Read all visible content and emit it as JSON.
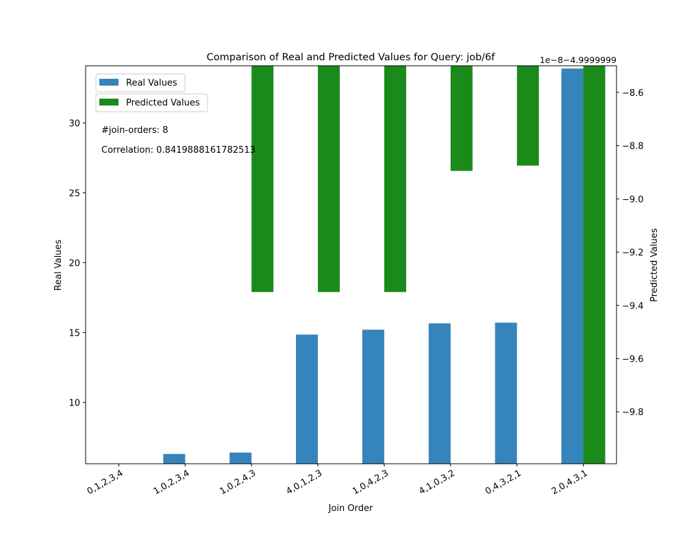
{
  "chart_data": {
    "type": "bar",
    "title": "Comparison of Real and Predicted Values for Query: job/6f",
    "xlabel": "Join Order",
    "ylabel_left": "Real Values",
    "ylabel_right": "Predicted Values",
    "right_offset_label": "1e−8−4.9999999",
    "categories": [
      "0,1,2,3,4",
      "1,0,2,3,4",
      "1,0,2,4,3",
      "4,0,1,2,3",
      "1,0,4,2,3",
      "4,1,0,3,2",
      "0,4,3,2,1",
      "2,0,4,3,1"
    ],
    "series": [
      {
        "name": "Real Values",
        "axis": "left",
        "color": "#3584bb",
        "values": [
          5.6,
          6.3,
          6.4,
          14.85,
          15.2,
          15.65,
          15.7,
          33.9
        ]
      },
      {
        "name": "Predicted Values",
        "axis": "right",
        "color": "#1a8a1a",
        "values": [
          -8.5,
          -8.5,
          -9.35,
          -9.35,
          -9.35,
          -8.895,
          -8.875,
          -10.0
        ]
      }
    ],
    "ylim_left": [
      5.6,
      34.1
    ],
    "yticks_left": [
      "10",
      "15",
      "20",
      "25",
      "30"
    ],
    "yticks_left_values": [
      10,
      15,
      20,
      25,
      30
    ],
    "ylim_right": [
      -9.995,
      -8.5
    ],
    "yticks_right": [
      "−8.6",
      "−8.8",
      "−9.0",
      "−9.2",
      "−9.4",
      "−9.6",
      "−9.8"
    ],
    "yticks_right_values": [
      -8.6,
      -8.8,
      -9.0,
      -9.2,
      -9.4,
      -9.6,
      -9.8
    ],
    "legend_placement": "top-left",
    "annotations": [
      "#join-orders: 8",
      "Correlation: 0.8419888161782513"
    ],
    "grid": false
  }
}
